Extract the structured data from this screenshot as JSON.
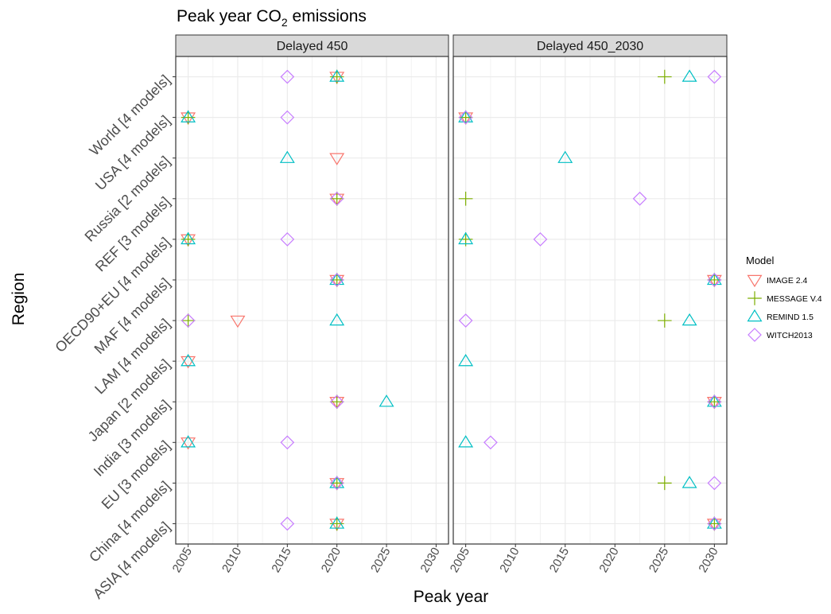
{
  "chart_data": {
    "type": "scatter",
    "title_main": "Peak year CO",
    "title_sub": "2",
    "title_tail": " emissions",
    "xlabel": "Peak year",
    "ylabel": "Region",
    "xlim": [
      2003.75,
      2031.25
    ],
    "x_ticks": [
      2005,
      2010,
      2015,
      2020,
      2025,
      2030
    ],
    "x_tick_labels": [
      "2005",
      "2010",
      "2015",
      "2020",
      "2025",
      "2030"
    ],
    "regions": [
      "World [4 models]",
      "USA [4 models]",
      "Russia [2 models]",
      "REF [3 models]",
      "OECD90+EU [4 models]",
      "MAF [4 models]",
      "LAM [4 models]",
      "Japan [2 models]",
      "India [3 models]",
      "EU [3 models]",
      "China [4 models]",
      "ASIA [4 models]"
    ],
    "grid": true,
    "legend": {
      "title": "Model",
      "placement": "right",
      "entries": [
        {
          "name": "IMAGE 2.4",
          "shape": "triangle-down",
          "color": "#F8766D"
        },
        {
          "name": "MESSAGE V.4",
          "shape": "plus",
          "color": "#7CAE00"
        },
        {
          "name": "REMIND 1.5",
          "shape": "triangle-up",
          "color": "#00BFC4"
        },
        {
          "name": "WITCH2013",
          "shape": "diamond",
          "color": "#C77CFF"
        }
      ]
    },
    "panels": [
      {
        "title": "Delayed 450",
        "series": [
          {
            "name": "IMAGE 2.4",
            "points": [
              {
                "x": 2020,
                "region": "World [4 models]"
              },
              {
                "x": 2005,
                "region": "USA [4 models]"
              },
              {
                "x": 2020,
                "region": "Russia [2 models]"
              },
              {
                "x": 2020,
                "region": "REF [3 models]"
              },
              {
                "x": 2005,
                "region": "OECD90+EU [4 models]"
              },
              {
                "x": 2020,
                "region": "MAF [4 models]"
              },
              {
                "x": 2010,
                "region": "LAM [4 models]"
              },
              {
                "x": 2005,
                "region": "Japan [2 models]"
              },
              {
                "x": 2020,
                "region": "India [3 models]"
              },
              {
                "x": 2005,
                "region": "EU [3 models]"
              },
              {
                "x": 2020,
                "region": "China [4 models]"
              },
              {
                "x": 2020,
                "region": "ASIA [4 models]"
              }
            ]
          },
          {
            "name": "MESSAGE V.4",
            "points": [
              {
                "x": 2020,
                "region": "World [4 models]"
              },
              {
                "x": 2005,
                "region": "USA [4 models]"
              },
              {
                "x": 2020,
                "region": "REF [3 models]"
              },
              {
                "x": 2005,
                "region": "OECD90+EU [4 models]"
              },
              {
                "x": 2020,
                "region": "MAF [4 models]"
              },
              {
                "x": 2005,
                "region": "LAM [4 models]"
              },
              {
                "x": 2020,
                "region": "India [3 models]"
              },
              {
                "x": 2020,
                "region": "China [4 models]"
              },
              {
                "x": 2020,
                "region": "ASIA [4 models]"
              }
            ]
          },
          {
            "name": "REMIND 1.5",
            "points": [
              {
                "x": 2020,
                "region": "World [4 models]"
              },
              {
                "x": 2005,
                "region": "USA [4 models]"
              },
              {
                "x": 2015,
                "region": "Russia [2 models]"
              },
              {
                "x": 2005,
                "region": "OECD90+EU [4 models]"
              },
              {
                "x": 2020,
                "region": "MAF [4 models]"
              },
              {
                "x": 2020,
                "region": "LAM [4 models]"
              },
              {
                "x": 2005,
                "region": "Japan [2 models]"
              },
              {
                "x": 2025,
                "region": "India [3 models]"
              },
              {
                "x": 2005,
                "region": "EU [3 models]"
              },
              {
                "x": 2020,
                "region": "China [4 models]"
              },
              {
                "x": 2020,
                "region": "ASIA [4 models]"
              }
            ]
          },
          {
            "name": "WITCH2013",
            "points": [
              {
                "x": 2015,
                "region": "World [4 models]"
              },
              {
                "x": 2015,
                "region": "USA [4 models]"
              },
              {
                "x": 2020,
                "region": "REF [3 models]"
              },
              {
                "x": 2015,
                "region": "OECD90+EU [4 models]"
              },
              {
                "x": 2020,
                "region": "MAF [4 models]"
              },
              {
                "x": 2005,
                "region": "LAM [4 models]"
              },
              {
                "x": 2020,
                "region": "India [3 models]"
              },
              {
                "x": 2015,
                "region": "EU [3 models]"
              },
              {
                "x": 2020,
                "region": "China [4 models]"
              },
              {
                "x": 2015,
                "region": "ASIA [4 models]"
              }
            ]
          }
        ]
      },
      {
        "title": "Delayed 450_2030",
        "series": [
          {
            "name": "IMAGE 2.4",
            "points": [
              {
                "x": 2005,
                "region": "USA [4 models]"
              },
              {
                "x": 2030,
                "region": "MAF [4 models]"
              },
              {
                "x": 2030,
                "region": "India [3 models]"
              },
              {
                "x": 2030,
                "region": "ASIA [4 models]"
              }
            ]
          },
          {
            "name": "MESSAGE V.4",
            "points": [
              {
                "x": 2025,
                "region": "World [4 models]"
              },
              {
                "x": 2005,
                "region": "USA [4 models]"
              },
              {
                "x": 2005,
                "region": "REF [3 models]"
              },
              {
                "x": 2005,
                "region": "OECD90+EU [4 models]"
              },
              {
                "x": 2030,
                "region": "MAF [4 models]"
              },
              {
                "x": 2025,
                "region": "LAM [4 models]"
              },
              {
                "x": 2030,
                "region": "India [3 models]"
              },
              {
                "x": 2025,
                "region": "China [4 models]"
              },
              {
                "x": 2030,
                "region": "ASIA [4 models]"
              }
            ]
          },
          {
            "name": "REMIND 1.5",
            "points": [
              {
                "x": 2027.5,
                "region": "World [4 models]"
              },
              {
                "x": 2005,
                "region": "USA [4 models]"
              },
              {
                "x": 2015,
                "region": "Russia [2 models]"
              },
              {
                "x": 2005,
                "region": "OECD90+EU [4 models]"
              },
              {
                "x": 2030,
                "region": "MAF [4 models]"
              },
              {
                "x": 2027.5,
                "region": "LAM [4 models]"
              },
              {
                "x": 2005,
                "region": "Japan [2 models]"
              },
              {
                "x": 2030,
                "region": "India [3 models]"
              },
              {
                "x": 2005,
                "region": "EU [3 models]"
              },
              {
                "x": 2027.5,
                "region": "China [4 models]"
              },
              {
                "x": 2030,
                "region": "ASIA [4 models]"
              }
            ]
          },
          {
            "name": "WITCH2013",
            "points": [
              {
                "x": 2030,
                "region": "World [4 models]"
              },
              {
                "x": 2005,
                "region": "USA [4 models]"
              },
              {
                "x": 2022.5,
                "region": "REF [3 models]"
              },
              {
                "x": 2012.5,
                "region": "OECD90+EU [4 models]"
              },
              {
                "x": 2030,
                "region": "MAF [4 models]"
              },
              {
                "x": 2005,
                "region": "LAM [4 models]"
              },
              {
                "x": 2030,
                "region": "India [3 models]"
              },
              {
                "x": 2007.5,
                "region": "EU [3 models]"
              },
              {
                "x": 2030,
                "region": "China [4 models]"
              },
              {
                "x": 2030,
                "region": "ASIA [4 models]"
              }
            ]
          }
        ]
      }
    ]
  }
}
